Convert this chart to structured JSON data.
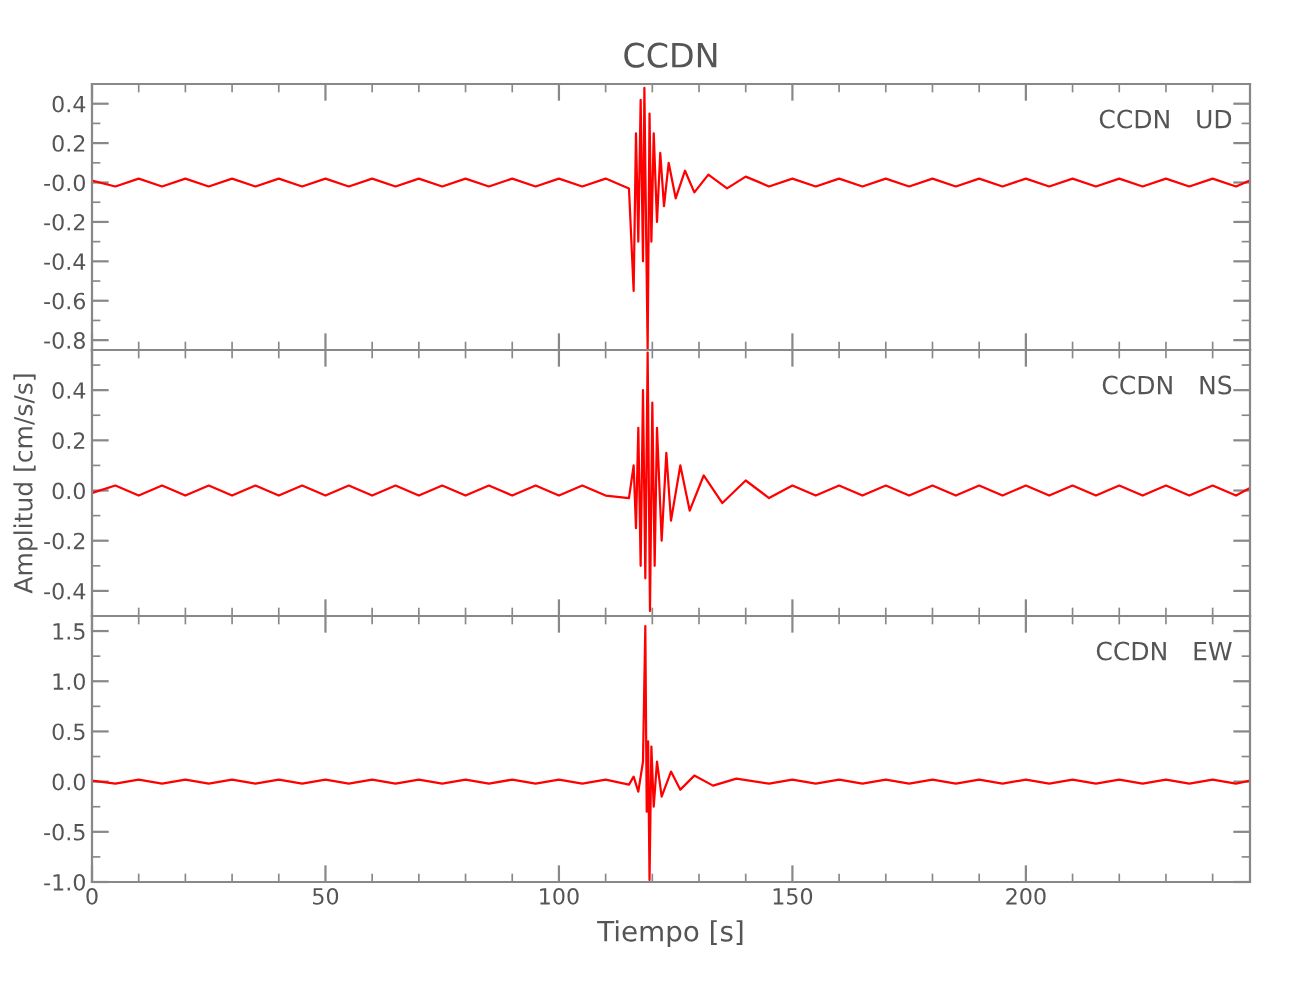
{
  "chart_data": [
    {
      "type": "line",
      "title": "CCDN",
      "annotations": [
        "CCDN   UD"
      ],
      "tick_labels": "y",
      "grid": false,
      "legend": false,
      "xlim": [
        0,
        248
      ],
      "xticks": [
        0,
        50,
        100,
        150,
        200
      ],
      "ylim": [
        -0.85,
        0.5
      ],
      "yticks": [
        -0.8,
        -0.6,
        -0.4,
        -0.2,
        {
          "value": 0,
          "label": "-0.0"
        },
        0.2,
        0.4
      ],
      "series": [
        {
          "color": "#ff0000",
          "x": [
            0,
            5,
            10,
            15,
            20,
            25,
            30,
            35,
            40,
            45,
            50,
            55,
            60,
            65,
            70,
            75,
            80,
            85,
            90,
            95,
            100,
            105,
            110,
            115,
            116,
            116.5,
            117,
            117.5,
            118,
            118.3,
            118.7,
            119,
            119.4,
            119.8,
            120.3,
            121,
            121.7,
            122.5,
            123.5,
            125,
            127,
            129,
            132,
            136,
            140,
            145,
            150,
            155,
            160,
            165,
            170,
            175,
            180,
            185,
            190,
            195,
            200,
            205,
            210,
            215,
            220,
            225,
            230,
            235,
            240,
            245,
            248
          ],
          "values": [
            0.01,
            -0.02,
            0.02,
            -0.02,
            0.02,
            -0.02,
            0.02,
            -0.02,
            0.02,
            -0.02,
            0.02,
            -0.02,
            0.02,
            -0.02,
            0.02,
            -0.02,
            0.02,
            -0.02,
            0.02,
            -0.02,
            0.02,
            -0.02,
            0.02,
            -0.03,
            -0.55,
            0.25,
            -0.3,
            0.42,
            -0.4,
            0.48,
            -0.3,
            -0.85,
            0.35,
            -0.3,
            0.25,
            -0.2,
            0.15,
            -0.12,
            0.1,
            -0.08,
            0.06,
            -0.05,
            0.04,
            -0.03,
            0.03,
            -0.02,
            0.02,
            -0.02,
            0.02,
            -0.02,
            0.02,
            -0.02,
            0.02,
            -0.02,
            0.02,
            -0.02,
            0.02,
            -0.02,
            0.02,
            -0.02,
            0.02,
            -0.02,
            0.02,
            -0.02,
            0.02,
            -0.02,
            0.01
          ]
        }
      ]
    },
    {
      "type": "line",
      "ylabel": "Amplitud [cm/s/s]",
      "annotations": [
        "CCDN   NS"
      ],
      "tick_labels": "y",
      "grid": false,
      "legend": false,
      "xlim": [
        0,
        248
      ],
      "xticks": [
        0,
        50,
        100,
        150,
        200
      ],
      "ylim": [
        -0.5,
        0.56
      ],
      "yticks": [
        -0.4,
        -0.2,
        {
          "value": 0,
          "label": "0.0"
        },
        0.2,
        0.4
      ],
      "series": [
        {
          "color": "#ff0000",
          "x": [
            0,
            5,
            10,
            15,
            20,
            25,
            30,
            35,
            40,
            45,
            50,
            55,
            60,
            65,
            70,
            75,
            80,
            85,
            90,
            95,
            100,
            105,
            110,
            115,
            116,
            116.5,
            117,
            117.5,
            118,
            118.5,
            119,
            119.5,
            120,
            120.5,
            121,
            122,
            123,
            124,
            126,
            128,
            131,
            135,
            140,
            145,
            150,
            155,
            160,
            165,
            170,
            175,
            180,
            185,
            190,
            195,
            200,
            205,
            210,
            215,
            220,
            225,
            230,
            235,
            240,
            245,
            248
          ],
          "values": [
            -0.01,
            0.02,
            -0.02,
            0.02,
            -0.02,
            0.02,
            -0.02,
            0.02,
            -0.02,
            0.02,
            -0.02,
            0.02,
            -0.02,
            0.02,
            -0.02,
            0.02,
            -0.02,
            0.02,
            -0.02,
            0.02,
            -0.02,
            0.02,
            -0.02,
            -0.03,
            0.1,
            -0.15,
            0.25,
            -0.3,
            0.4,
            -0.35,
            0.55,
            -0.48,
            0.35,
            -0.3,
            0.25,
            -0.2,
            0.15,
            -0.12,
            0.1,
            -0.08,
            0.06,
            -0.05,
            0.04,
            -0.03,
            0.02,
            -0.02,
            0.02,
            -0.02,
            0.02,
            -0.02,
            0.02,
            -0.02,
            0.02,
            -0.02,
            0.02,
            -0.02,
            0.02,
            -0.02,
            0.02,
            -0.02,
            0.02,
            -0.02,
            0.02,
            -0.02,
            0.01
          ]
        }
      ]
    },
    {
      "type": "line",
      "xlabel": "Tiempo [s]",
      "annotations": [
        "CCDN   EW"
      ],
      "grid": false,
      "legend": false,
      "xlim": [
        0,
        248
      ],
      "xticks": [
        0,
        50,
        100,
        150,
        200
      ],
      "ylim": [
        -1.0,
        1.65
      ],
      "yticks": [
        {
          "value": -1,
          "label": "-1.0"
        },
        -0.5,
        {
          "value": 0,
          "label": "0.0"
        },
        0.5,
        {
          "value": 1,
          "label": "1.0"
        },
        1.5
      ],
      "series": [
        {
          "color": "#ff0000",
          "x": [
            0,
            5,
            10,
            15,
            20,
            25,
            30,
            35,
            40,
            45,
            50,
            55,
            60,
            65,
            70,
            75,
            80,
            85,
            90,
            95,
            100,
            105,
            110,
            115,
            116,
            117,
            118,
            118.5,
            118.8,
            119.1,
            119.4,
            119.8,
            120.3,
            121,
            122,
            124,
            126,
            129,
            133,
            138,
            145,
            150,
            155,
            160,
            165,
            170,
            175,
            180,
            185,
            190,
            195,
            200,
            205,
            210,
            215,
            220,
            225,
            230,
            235,
            240,
            245,
            248
          ],
          "values": [
            0.01,
            -0.02,
            0.02,
            -0.02,
            0.02,
            -0.02,
            0.02,
            -0.02,
            0.02,
            -0.02,
            0.02,
            -0.02,
            0.02,
            -0.02,
            0.02,
            -0.02,
            0.02,
            -0.02,
            0.02,
            -0.02,
            0.02,
            -0.02,
            0.02,
            -0.03,
            0.05,
            -0.1,
            0.2,
            1.55,
            -0.3,
            0.4,
            -0.98,
            0.35,
            -0.25,
            0.2,
            -0.15,
            0.1,
            -0.08,
            0.06,
            -0.04,
            0.03,
            -0.02,
            0.02,
            -0.02,
            0.02,
            -0.02,
            0.02,
            -0.02,
            0.02,
            -0.02,
            0.02,
            -0.02,
            0.02,
            -0.02,
            0.02,
            -0.02,
            0.02,
            -0.02,
            0.02,
            -0.02,
            0.02,
            -0.02,
            0.01
          ]
        }
      ]
    }
  ]
}
